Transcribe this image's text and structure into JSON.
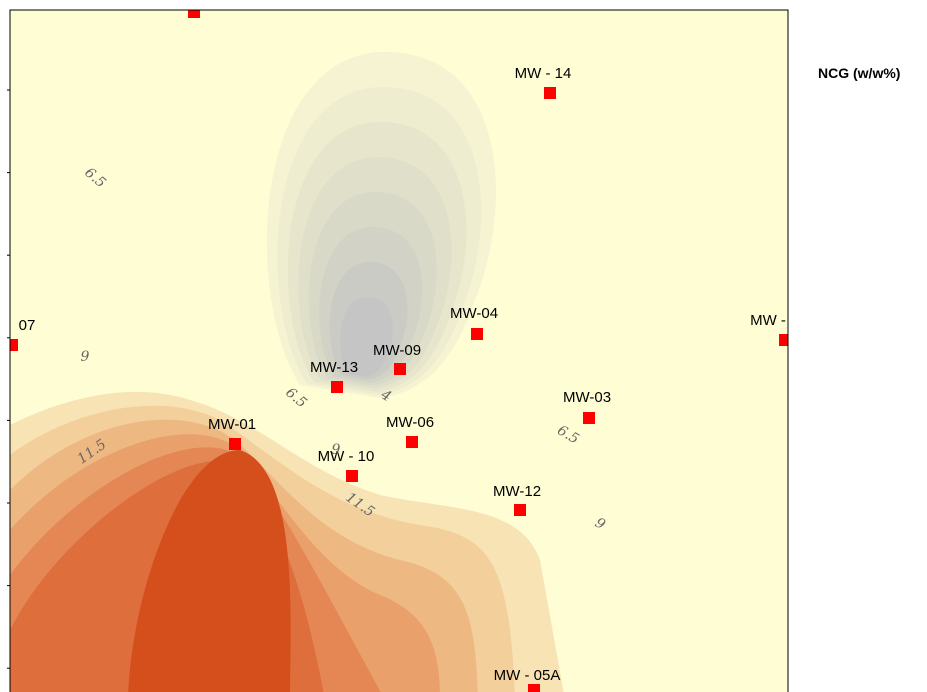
{
  "legend": {
    "title": "NCG (w/w%)"
  },
  "wells": [
    {
      "label": "MW - 14"
    },
    {
      "label": "07"
    },
    {
      "label": "MW-04"
    },
    {
      "label": "MW-09"
    },
    {
      "label": "MW-13"
    },
    {
      "label": "MW-03"
    },
    {
      "label": "MW-06"
    },
    {
      "label": "MW-01"
    },
    {
      "label": "MW - 10"
    },
    {
      "label": "MW-12"
    },
    {
      "label": "MW -"
    },
    {
      "label": "MW - 05A"
    }
  ],
  "contour_labels": [
    6.5,
    9,
    6.5,
    4,
    11.5,
    9,
    11.5,
    6.5,
    9
  ]
}
